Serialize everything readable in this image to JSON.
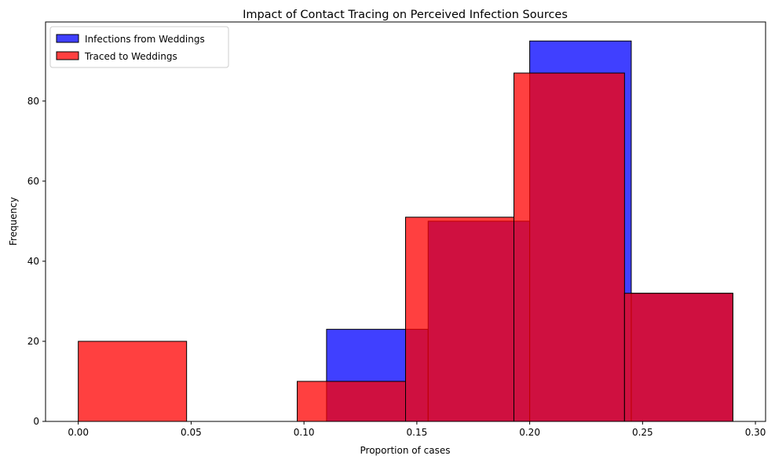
{
  "chart_data": {
    "type": "histogram",
    "title": "Impact of Contact Tracing on Perceived Infection Sources",
    "xlabel": "Proportion of cases",
    "ylabel": "Frequency",
    "xlim": [
      -0.0145,
      0.3045
    ],
    "ylim": [
      0,
      99.75
    ],
    "xticks": [
      0.0,
      0.05,
      0.1,
      0.15,
      0.2,
      0.25,
      0.3
    ],
    "xtick_labels": [
      "0.00",
      "0.05",
      "0.10",
      "0.15",
      "0.20",
      "0.25",
      "0.30"
    ],
    "yticks": [
      0,
      20,
      40,
      60,
      80
    ],
    "ytick_labels": [
      "0",
      "20",
      "40",
      "60",
      "80"
    ],
    "grid": false,
    "legend_position": "upper left",
    "series": [
      {
        "name": "Infections from Weddings",
        "color": "#0000ff",
        "alpha": 0.75,
        "bins": [
          {
            "start": 0.11,
            "end": 0.155,
            "count": 23
          },
          {
            "start": 0.155,
            "end": 0.2,
            "count": 50
          },
          {
            "start": 0.2,
            "end": 0.245,
            "count": 95
          },
          {
            "start": 0.245,
            "end": 0.29,
            "count": 32
          }
        ]
      },
      {
        "name": "Traced to Weddings",
        "color": "#ff0000",
        "alpha": 0.75,
        "bins": [
          {
            "start": 0.0,
            "end": 0.048,
            "count": 20
          },
          {
            "start": 0.048,
            "end": 0.097,
            "count": 0
          },
          {
            "start": 0.097,
            "end": 0.145,
            "count": 10
          },
          {
            "start": 0.145,
            "end": 0.193,
            "count": 51
          },
          {
            "start": 0.193,
            "end": 0.242,
            "count": 87
          },
          {
            "start": 0.242,
            "end": 0.29,
            "count": 32
          }
        ]
      }
    ]
  }
}
